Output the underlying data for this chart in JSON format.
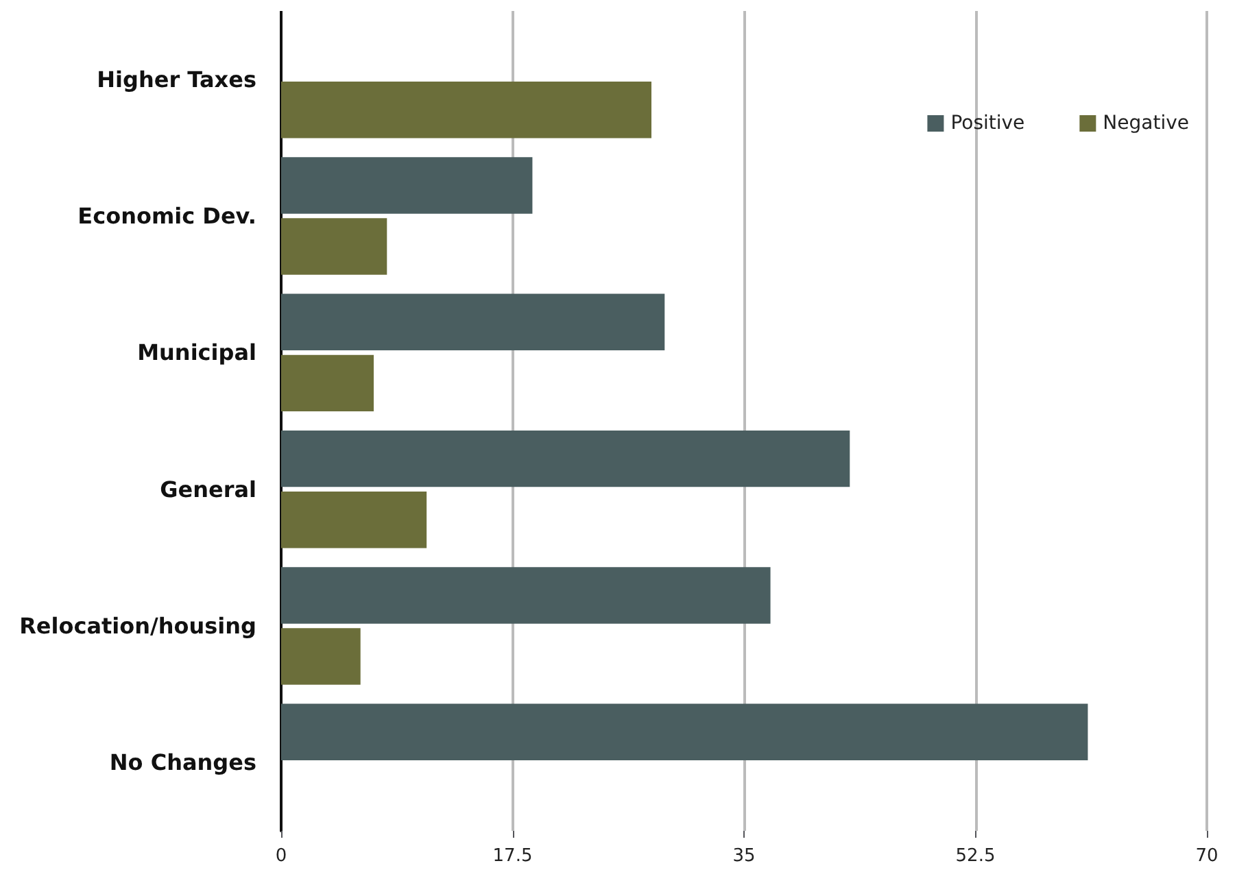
{
  "chart_data": {
    "type": "bar",
    "orientation": "horizontal",
    "categories": [
      "Higher Taxes",
      "Economic Dev.",
      "Municipal",
      "General",
      "Relocation/housing",
      "No Changes"
    ],
    "series": [
      {
        "name": "Positive",
        "color": "#4a5e60",
        "values": [
          null,
          19,
          29,
          43,
          37,
          61
        ]
      },
      {
        "name": "Negative",
        "color": "#6b6e3a",
        "values": [
          28,
          8,
          7,
          11,
          6,
          null
        ]
      }
    ],
    "xlim": [
      0,
      70
    ],
    "xticks": [
      0,
      17.5,
      35,
      52.5,
      70
    ],
    "grid": "x",
    "legend": "top right"
  }
}
